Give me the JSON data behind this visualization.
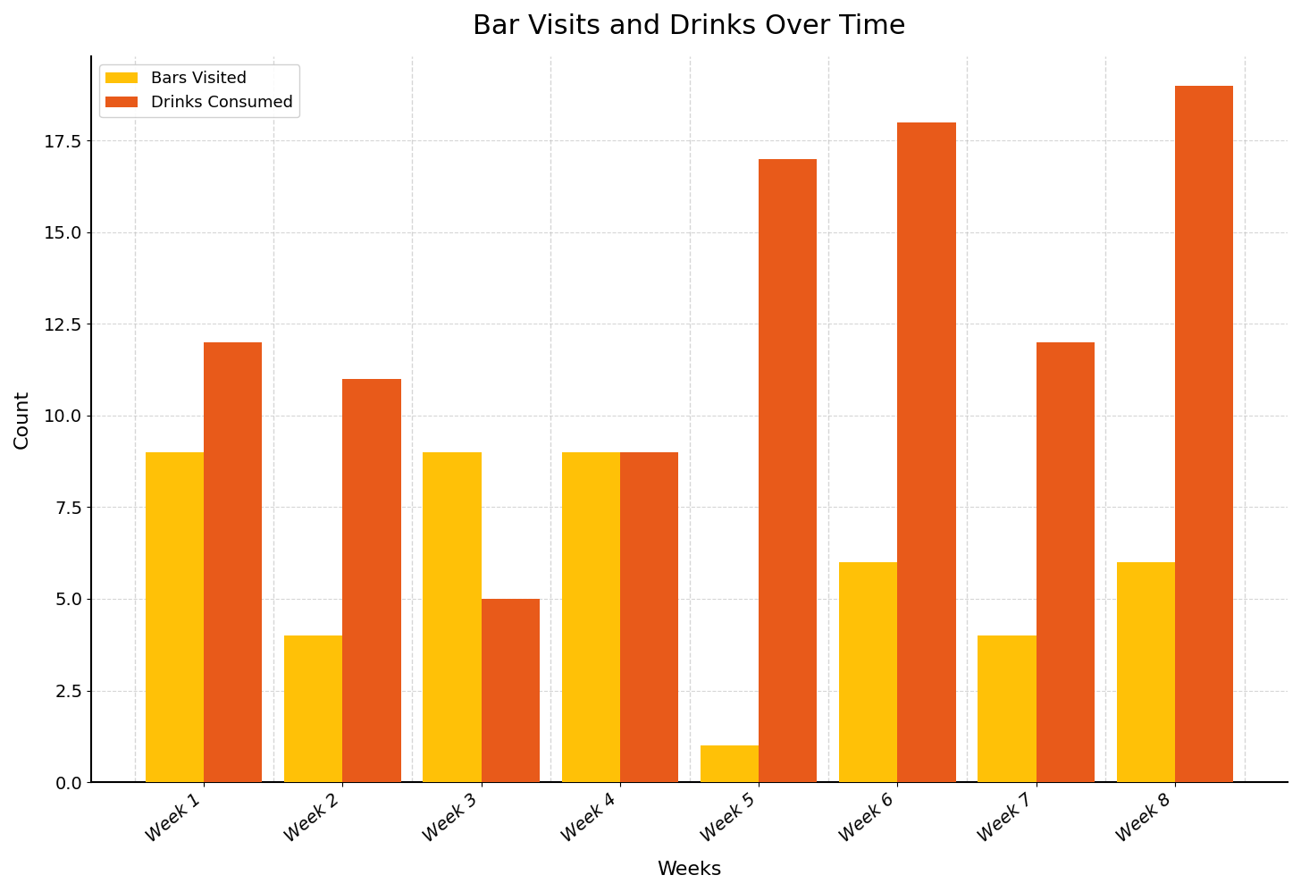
{
  "title": "Bar Visits and Drinks Over Time",
  "xlabel": "Weeks",
  "ylabel": "Count",
  "categories": [
    "Week 1",
    "Week 2",
    "Week 3",
    "Week 4",
    "Week 5",
    "Week 6",
    "Week 7",
    "Week 8"
  ],
  "bars_visited": [
    9,
    4,
    9,
    9,
    1,
    6,
    4,
    6
  ],
  "drinks_consumed": [
    12,
    11,
    5,
    9,
    17,
    18,
    12,
    19
  ],
  "color_bars_visited": "#FFC107",
  "color_drinks_consumed": "#E85A1A",
  "background_color": "#FFFFFF",
  "ylim": [
    0,
    19.8
  ],
  "bar_width": 0.42,
  "legend_labels": [
    "Bars Visited",
    "Drinks Consumed"
  ],
  "title_fontsize": 22,
  "axis_label_fontsize": 16,
  "tick_fontsize": 14,
  "legend_fontsize": 13,
  "grid_color": "#BBBBBB",
  "grid_linestyle": "--",
  "grid_alpha": 0.6,
  "xtick_rotation": 40
}
